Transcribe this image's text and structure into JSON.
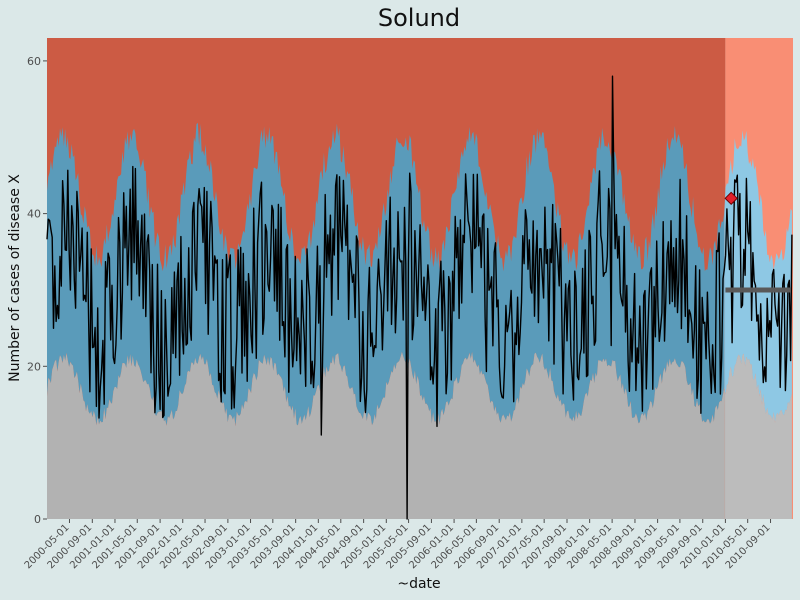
{
  "chart_data": {
    "type": "line",
    "title": "Solund",
    "xlabel": "~date",
    "ylabel": "Number of cases of disease X",
    "ylim": [
      0,
      63
    ],
    "yticks": [
      0,
      20,
      40,
      60
    ],
    "x_tick_labels": [
      "2000-05-01",
      "2000-09-01",
      "2001-01-01",
      "2001-05-01",
      "2001-09-01",
      "2002-01-01",
      "2002-05-01",
      "2002-09-01",
      "2003-01-01",
      "2003-05-01",
      "2003-09-01",
      "2004-01-01",
      "2004-05-01",
      "2004-09-01",
      "2005-01-01",
      "2005-05-01",
      "2005-09-01",
      "2006-01-01",
      "2006-05-01",
      "2006-09-01",
      "2007-01-01",
      "2007-05-01",
      "2007-09-01",
      "2008-01-01",
      "2008-05-01",
      "2008-09-01",
      "2009-01-01",
      "2009-05-01",
      "2009-09-01",
      "2010-01-01",
      "2010-05-01",
      "2010-09-01"
    ],
    "x_start": "2000-01-01",
    "x_end": "2010-12-31",
    "forecast_start": "2010-01-01",
    "seasonal_baseline": {
      "lower_mean": 17,
      "lower_amplitude": 4,
      "upper_mean": 42,
      "upper_amplitude": 8,
      "peak_month": 3
    },
    "forecast_expected_value": 30,
    "outbreak_marker": {
      "date": "2010-02-01",
      "value": 42
    },
    "notable_points": [
      {
        "date": "2004-01-20",
        "value": 11
      },
      {
        "date": "2005-04-20",
        "value": 0
      },
      {
        "date": "2008-05-01",
        "value": 58
      }
    ],
    "grid": false,
    "colors": {
      "background": "#dbe8e8",
      "high_zone": "#cc5b44",
      "normal_band": "#5a9bba",
      "low_zone": "#b2b2b2",
      "line": "#000000",
      "forecast_high": "#f9876c",
      "forecast_band": "#87c5e3",
      "forecast_low": "#b8b8b8",
      "expected_line": "#595959",
      "marker_fill": "#e2202a"
    }
  }
}
